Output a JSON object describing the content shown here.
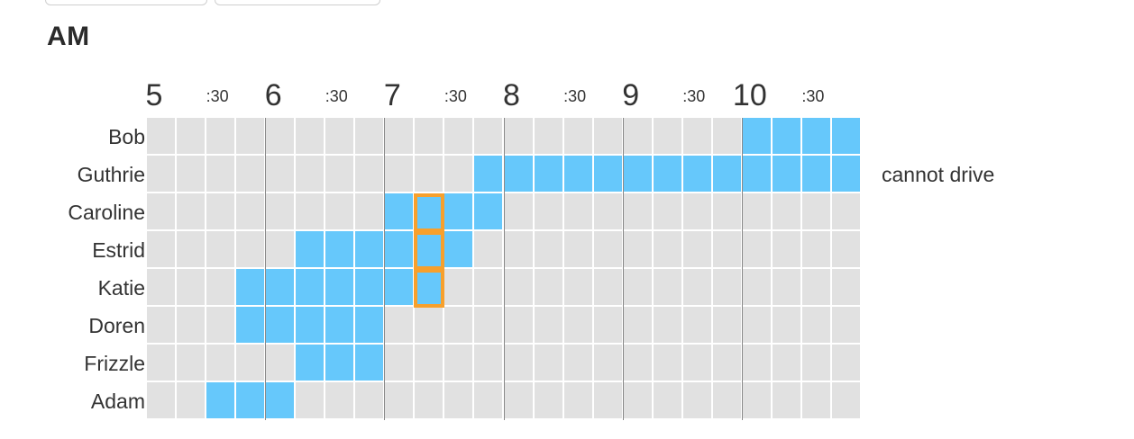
{
  "section_title": "AM",
  "time_labels": [
    "5",
    ":30",
    "6",
    ":30",
    "7",
    ":30",
    "8",
    ":30",
    "9",
    ":30",
    "10",
    ":30"
  ],
  "people": [
    {
      "name": "Bob",
      "slots": [
        20,
        21,
        22,
        23
      ],
      "note": ""
    },
    {
      "name": "Guthrie",
      "slots": [
        11,
        12,
        13,
        14,
        15,
        16,
        17,
        18,
        19,
        20,
        21,
        22,
        23
      ],
      "note": "cannot drive"
    },
    {
      "name": "Caroline",
      "slots": [
        8,
        9,
        10,
        11
      ],
      "note": ""
    },
    {
      "name": "Estrid",
      "slots": [
        5,
        6,
        7,
        8,
        9,
        10
      ],
      "note": ""
    },
    {
      "name": "Katie",
      "slots": [
        3,
        4,
        5,
        6,
        7,
        8,
        9
      ],
      "note": ""
    },
    {
      "name": "Doren",
      "slots": [
        3,
        4,
        5,
        6,
        7
      ],
      "note": ""
    },
    {
      "name": "Frizzle",
      "slots": [
        5,
        6,
        7
      ],
      "note": ""
    },
    {
      "name": "Adam",
      "slots": [
        2,
        3,
        4
      ],
      "note": ""
    }
  ],
  "slot_count": 24,
  "highlighted_slot": 9,
  "highlighted_rows": [
    "Caroline",
    "Estrid",
    "Katie"
  ],
  "colors": {
    "available": "#66c8fb",
    "unavailable": "#e1e1e1",
    "highlight": "#f7a02c"
  }
}
